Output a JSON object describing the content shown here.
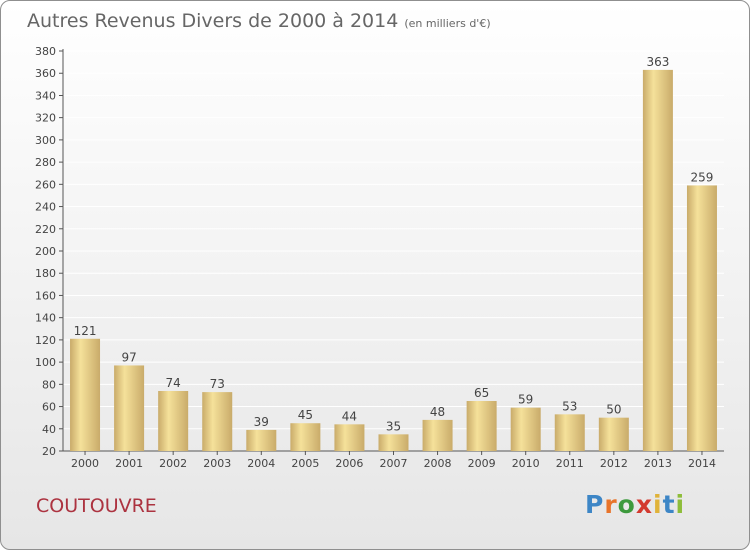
{
  "title": "Autres Revenus Divers de 2000 à 2014",
  "subtitle": "(en milliers d'€)",
  "place": "COUTOUVRE",
  "logo": {
    "letters": [
      "P",
      "r",
      "o",
      "x",
      "i",
      "t",
      "i"
    ],
    "colors": [
      "#3d86c6",
      "#e8742a",
      "#3d9a3d",
      "#d33a2f",
      "#e0b33a",
      "#3d86c6",
      "#8ebd3a"
    ]
  },
  "colors": {
    "bar_light": "#f5e19a",
    "bar_dark": "#c9ab6a",
    "grid": "#ffffff"
  },
  "chart_data": {
    "type": "bar",
    "title": "Autres Revenus Divers de 2000 à 2014",
    "xlabel": "",
    "ylabel": "",
    "categories": [
      "2000",
      "2001",
      "2002",
      "2003",
      "2004",
      "2005",
      "2006",
      "2007",
      "2008",
      "2009",
      "2010",
      "2011",
      "2012",
      "2013",
      "2014"
    ],
    "values": [
      121,
      97,
      74,
      73,
      39,
      45,
      44,
      35,
      48,
      65,
      59,
      53,
      50,
      363,
      259
    ],
    "ylim": [
      20,
      380
    ],
    "yticks": [
      20,
      40,
      60,
      80,
      100,
      120,
      140,
      160,
      180,
      200,
      220,
      240,
      260,
      280,
      300,
      320,
      340,
      360,
      380
    ],
    "grid": true
  }
}
